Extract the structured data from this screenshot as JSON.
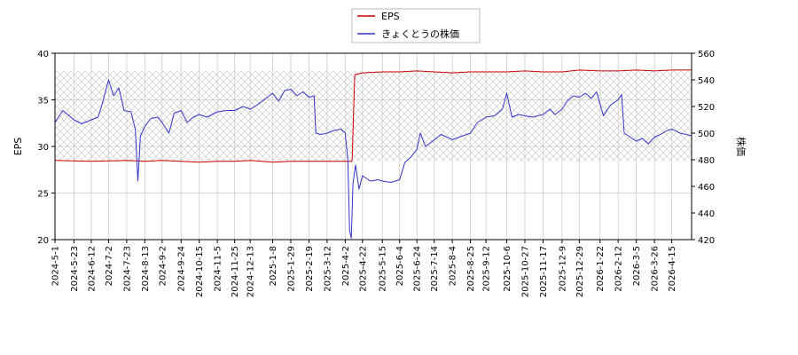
{
  "chart_data": {
    "type": "line",
    "legend": {
      "placement": "top-center",
      "items": [
        {
          "label": "EPS",
          "color": "#cc0000"
        },
        {
          "label": "きょくとうの株価",
          "color": "#3333cc"
        }
      ]
    },
    "ylabel_left": "EPS",
    "ylabel_right": "株価",
    "y_left": {
      "min": 20,
      "max": 40,
      "ticks": [
        "20",
        "25",
        "30",
        "35",
        "40"
      ]
    },
    "y_right": {
      "min": 420,
      "max": 560,
      "ticks": [
        "420",
        "440",
        "460",
        "480",
        "500",
        "520",
        "540",
        "560"
      ]
    },
    "x_range": [
      "2024-5-1",
      "2026-5-8"
    ],
    "x_ticks": [
      "2024-5-1",
      "2024-5-23",
      "2024-6-12",
      "2024-7-2",
      "2024-7-23",
      "2024-8-13",
      "2024-9-2",
      "2024-9-24",
      "2024-10-15",
      "2024-11-5",
      "2024-11-25",
      "2024-12-13",
      "2025-1-8",
      "2025-1-29",
      "2025-2-19",
      "2025-3-12",
      "2025-4-2",
      "2025-4-22",
      "2025-5-15",
      "2025-6-4",
      "2025-6-24",
      "2025-7-14",
      "2025-8-4",
      "2025-8-25",
      "2025-9-12",
      "2025-10-6",
      "2025-10-27",
      "2025-11-17",
      "2025-12-9",
      "2025-12-29",
      "2026-1-22",
      "2026-2-12",
      "2026-3-5",
      "2026-3-26",
      "2026-4-15"
    ],
    "grid": true,
    "hatched_band": {
      "axis": "right",
      "from": 479,
      "to": 547
    },
    "series": [
      {
        "name": "EPS",
        "axis": "left",
        "color": "#cc0000",
        "points": [
          [
            "2024-5-1",
            28.5
          ],
          [
            "2024-6-12",
            28.4
          ],
          [
            "2024-7-23",
            28.5
          ],
          [
            "2024-8-13",
            28.4
          ],
          [
            "2024-9-2",
            28.5
          ],
          [
            "2024-9-24",
            28.4
          ],
          [
            "2024-10-15",
            28.3
          ],
          [
            "2024-11-5",
            28.4
          ],
          [
            "2024-11-25",
            28.4
          ],
          [
            "2024-12-13",
            28.5
          ],
          [
            "2025-1-8",
            28.3
          ],
          [
            "2025-1-29",
            28.4
          ],
          [
            "2025-2-19",
            28.4
          ],
          [
            "2025-3-12",
            28.4
          ],
          [
            "2025-4-10",
            28.4
          ],
          [
            "2025-4-13",
            37.7
          ],
          [
            "2025-4-22",
            37.9
          ],
          [
            "2025-5-15",
            38.0
          ],
          [
            "2025-6-4",
            38.0
          ],
          [
            "2025-6-24",
            38.1
          ],
          [
            "2025-7-14",
            38.0
          ],
          [
            "2025-8-4",
            37.9
          ],
          [
            "2025-8-25",
            38.0
          ],
          [
            "2025-9-12",
            38.0
          ],
          [
            "2025-10-6",
            38.0
          ],
          [
            "2025-10-27",
            38.1
          ],
          [
            "2025-11-17",
            38.0
          ],
          [
            "2025-12-9",
            38.0
          ],
          [
            "2025-12-29",
            38.2
          ],
          [
            "2026-1-22",
            38.1
          ],
          [
            "2026-2-12",
            38.1
          ],
          [
            "2026-3-5",
            38.2
          ],
          [
            "2026-3-26",
            38.1
          ],
          [
            "2026-4-15",
            38.2
          ],
          [
            "2026-5-8",
            38.2
          ]
        ]
      },
      {
        "name": "きょくとうの株価",
        "axis": "right",
        "color": "#3333cc",
        "points": [
          [
            "2024-5-1",
            508
          ],
          [
            "2024-5-10",
            517
          ],
          [
            "2024-5-23",
            510
          ],
          [
            "2024-6-1",
            507
          ],
          [
            "2024-6-12",
            510
          ],
          [
            "2024-6-20",
            512
          ],
          [
            "2024-6-26",
            525
          ],
          [
            "2024-7-2",
            540
          ],
          [
            "2024-7-8",
            528
          ],
          [
            "2024-7-14",
            534
          ],
          [
            "2024-7-20",
            517
          ],
          [
            "2024-7-28",
            516
          ],
          [
            "2024-8-2",
            503
          ],
          [
            "2024-8-5",
            464
          ],
          [
            "2024-8-8",
            498
          ],
          [
            "2024-8-13",
            505
          ],
          [
            "2024-8-20",
            511
          ],
          [
            "2024-8-28",
            512
          ],
          [
            "2024-9-2",
            508
          ],
          [
            "2024-9-10",
            500
          ],
          [
            "2024-9-16",
            515
          ],
          [
            "2024-9-24",
            517
          ],
          [
            "2024-10-1",
            508
          ],
          [
            "2024-10-8",
            512
          ],
          [
            "2024-10-15",
            514
          ],
          [
            "2024-10-24",
            512
          ],
          [
            "2024-11-5",
            516
          ],
          [
            "2024-11-15",
            517
          ],
          [
            "2024-11-25",
            517
          ],
          [
            "2024-12-5",
            520
          ],
          [
            "2024-12-13",
            518
          ],
          [
            "2024-12-23",
            522
          ],
          [
            "2025-1-8",
            530
          ],
          [
            "2025-1-15",
            524
          ],
          [
            "2025-1-22",
            532
          ],
          [
            "2025-1-29",
            533
          ],
          [
            "2025-2-5",
            528
          ],
          [
            "2025-2-12",
            531
          ],
          [
            "2025-2-19",
            527
          ],
          [
            "2025-2-25",
            528
          ],
          [
            "2025-2-27",
            500
          ],
          [
            "2025-3-5",
            499
          ],
          [
            "2025-3-12",
            500
          ],
          [
            "2025-3-20",
            502
          ],
          [
            "2025-3-28",
            503
          ],
          [
            "2025-4-2",
            500
          ],
          [
            "2025-4-5",
            480
          ],
          [
            "2025-4-7",
            427
          ],
          [
            "2025-4-9",
            421
          ],
          [
            "2025-4-11",
            462
          ],
          [
            "2025-4-14",
            476
          ],
          [
            "2025-4-18",
            458
          ],
          [
            "2025-4-22",
            468
          ],
          [
            "2025-5-1",
            464
          ],
          [
            "2025-5-10",
            465
          ],
          [
            "2025-5-15",
            464
          ],
          [
            "2025-5-25",
            463
          ],
          [
            "2025-6-4",
            465
          ],
          [
            "2025-6-10",
            478
          ],
          [
            "2025-6-17",
            482
          ],
          [
            "2025-6-24",
            488
          ],
          [
            "2025-6-28",
            500
          ],
          [
            "2025-7-4",
            490
          ],
          [
            "2025-7-14",
            495
          ],
          [
            "2025-7-22",
            499
          ],
          [
            "2025-8-4",
            495
          ],
          [
            "2025-8-12",
            497
          ],
          [
            "2025-8-25",
            500
          ],
          [
            "2025-9-2",
            508
          ],
          [
            "2025-9-12",
            512
          ],
          [
            "2025-9-22",
            513
          ],
          [
            "2025-10-1",
            518
          ],
          [
            "2025-10-6",
            530
          ],
          [
            "2025-10-12",
            512
          ],
          [
            "2025-10-20",
            514
          ],
          [
            "2025-10-27",
            513
          ],
          [
            "2025-11-5",
            512
          ],
          [
            "2025-11-17",
            514
          ],
          [
            "2025-11-25",
            518
          ],
          [
            "2025-12-1",
            514
          ],
          [
            "2025-12-9",
            518
          ],
          [
            "2025-12-15",
            524
          ],
          [
            "2025-12-22",
            528
          ],
          [
            "2025-12-29",
            527
          ],
          [
            "2026-1-5",
            530
          ],
          [
            "2026-1-12",
            526
          ],
          [
            "2026-1-18",
            531
          ],
          [
            "2026-1-22",
            522
          ],
          [
            "2026-1-26",
            513
          ],
          [
            "2026-2-3",
            521
          ],
          [
            "2026-2-12",
            525
          ],
          [
            "2026-2-16",
            529
          ],
          [
            "2026-2-19",
            500
          ],
          [
            "2026-2-26",
            497
          ],
          [
            "2026-3-5",
            494
          ],
          [
            "2026-3-12",
            496
          ],
          [
            "2026-3-19",
            492
          ],
          [
            "2026-3-26",
            497
          ],
          [
            "2026-4-2",
            499
          ],
          [
            "2026-4-10",
            502
          ],
          [
            "2026-4-15",
            503
          ],
          [
            "2026-4-25",
            500
          ],
          [
            "2026-5-8",
            498
          ]
        ]
      }
    ]
  }
}
